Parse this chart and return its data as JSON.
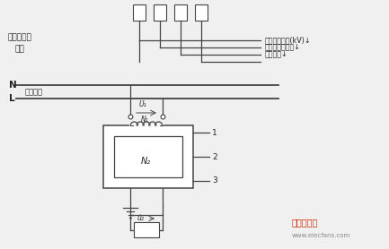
{
  "bg_color": "#f0f0f0",
  "line_color": "#444444",
  "text_color": "#222222",
  "labels": {
    "sensor_label1": "电压互感器",
    "sensor_label2": "相数",
    "right_label1": "一次额定电压(kV)↓",
    "right_label2": "铁芯及绕组结构↓",
    "right_label3": "绝缘结构↓",
    "N_label": "N",
    "L_label": "L",
    "primary_circuit": "一次线路",
    "U1_label": "U̇₁",
    "N1_label": "N₁",
    "N2_label": "N₂",
    "U2_label": "u̇₂",
    "label1": "1",
    "label2": "2",
    "label3": "3"
  },
  "watermark": "www.elecfans.com",
  "logo": "电子发烧友"
}
